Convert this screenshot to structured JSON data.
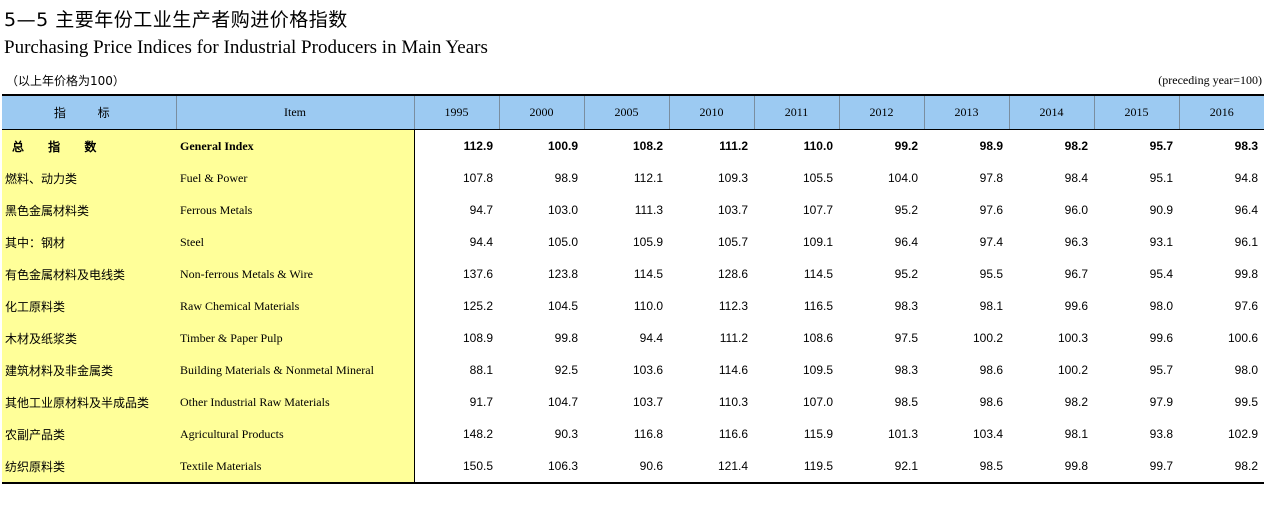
{
  "title_cn": "5—5  主要年份工业生产者购进价格指数",
  "title_en": "Purchasing Price Indices for Industrial Producers in Main Years",
  "unit_cn": "（以上年价格为100）",
  "unit_en": "(preceding year=100)",
  "header": {
    "indicator_cn": "指 标",
    "item_en": "Item",
    "years": [
      "1995",
      "2000",
      "2005",
      "2010",
      "2011",
      "2012",
      "2013",
      "2014",
      "2015",
      "2016"
    ]
  },
  "rows": [
    {
      "cn": "总 指 数",
      "en": "General Index",
      "bold": true,
      "values": [
        "112.9",
        "100.9",
        "108.2",
        "111.2",
        "110.0",
        "99.2",
        "98.9",
        "98.2",
        "95.7",
        "98.3"
      ]
    },
    {
      "cn": "燃料、动力类",
      "en": "Fuel & Power",
      "values": [
        "107.8",
        "98.9",
        "112.1",
        "109.3",
        "105.5",
        "104.0",
        "97.8",
        "98.4",
        "95.1",
        "94.8"
      ]
    },
    {
      "cn": "黑色金属材料类",
      "en": "Ferrous Metals",
      "values": [
        "94.7",
        "103.0",
        "111.3",
        "103.7",
        "107.7",
        "95.2",
        "97.6",
        "96.0",
        "90.9",
        "96.4"
      ]
    },
    {
      "cn": "其中：钢材",
      "en": "Steel",
      "values": [
        "94.4",
        "105.0",
        "105.9",
        "105.7",
        "109.1",
        "96.4",
        "97.4",
        "96.3",
        "93.1",
        "96.1"
      ]
    },
    {
      "cn": "有色金属材料及电线类",
      "en": "Non-ferrous Metals & Wire",
      "values": [
        "137.6",
        "123.8",
        "114.5",
        "128.6",
        "114.5",
        "95.2",
        "95.5",
        "96.7",
        "95.4",
        "99.8"
      ]
    },
    {
      "cn": "化工原料类",
      "en": "Raw Chemical Materials",
      "values": [
        "125.2",
        "104.5",
        "110.0",
        "112.3",
        "116.5",
        "98.3",
        "98.1",
        "99.6",
        "98.0",
        "97.6"
      ]
    },
    {
      "cn": "木材及纸浆类",
      "en": "Timber & Paper Pulp",
      "values": [
        "108.9",
        "99.8",
        "94.4",
        "111.2",
        "108.6",
        "97.5",
        "100.2",
        "100.3",
        "99.6",
        "100.6"
      ]
    },
    {
      "cn": "建筑材料及非金属类",
      "en": "Building Materials & Nonmetal Mineral",
      "values": [
        "88.1",
        "92.5",
        "103.6",
        "114.6",
        "109.5",
        "98.3",
        "98.6",
        "100.2",
        "95.7",
        "98.0"
      ]
    },
    {
      "cn": "其他工业原材料及半成品类",
      "en": "Other Industrial Raw Materials",
      "values": [
        "91.7",
        "104.7",
        "103.7",
        "110.3",
        "107.0",
        "98.5",
        "98.6",
        "98.2",
        "97.9",
        "99.5"
      ]
    },
    {
      "cn": "农副产品类",
      "en": "Agricultural Products",
      "values": [
        "148.2",
        "90.3",
        "116.8",
        "116.6",
        "115.9",
        "101.3",
        "103.4",
        "98.1",
        "93.8",
        "102.9"
      ]
    },
    {
      "cn": "纺织原料类",
      "en": "Textile Materials",
      "values": [
        "150.5",
        "106.3",
        "90.6",
        "121.4",
        "119.5",
        "92.1",
        "98.5",
        "99.8",
        "99.7",
        "98.2"
      ]
    }
  ],
  "colors": {
    "header_bg": "#9ccaf2",
    "label_bg": "#ffff99"
  }
}
